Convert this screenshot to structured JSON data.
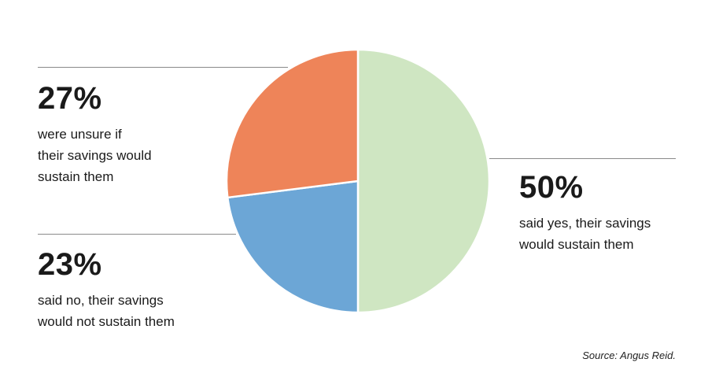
{
  "chart_data": {
    "type": "pie",
    "slices": [
      {
        "key": "yes",
        "value": 50,
        "label": "50%",
        "description": "said yes, their savings would sustain them",
        "color": "#cfe6c2"
      },
      {
        "key": "no",
        "value": 23,
        "label": "23%",
        "description": "said no, their savings would not sustain them",
        "color": "#6ca6d6"
      },
      {
        "key": "unsure",
        "value": 27,
        "label": "27%",
        "description": "were unsure if their savings would sustain them",
        "color": "#ee8459"
      }
    ],
    "description_lines": {
      "yes": [
        "said yes, their savings",
        "would sustain them"
      ],
      "no": [
        "said no, their savings",
        "would not sustain them"
      ],
      "unsure": [
        "were unsure if",
        "their savings would",
        "sustain them"
      ]
    },
    "source": "Source: Angus Reid."
  }
}
